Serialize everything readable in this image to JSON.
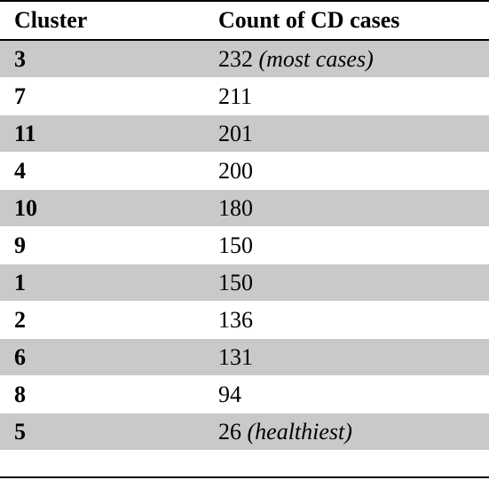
{
  "table": {
    "headers": [
      "Cluster",
      "Count of CD cases"
    ],
    "rows": [
      {
        "cluster": "3",
        "count": "232",
        "note": "(most cases)"
      },
      {
        "cluster": "7",
        "count": "211",
        "note": ""
      },
      {
        "cluster": "11",
        "count": "201",
        "note": ""
      },
      {
        "cluster": "4",
        "count": "200",
        "note": ""
      },
      {
        "cluster": "10",
        "count": "180",
        "note": ""
      },
      {
        "cluster": "9",
        "count": "150",
        "note": ""
      },
      {
        "cluster": "1",
        "count": "150",
        "note": ""
      },
      {
        "cluster": "2",
        "count": "136",
        "note": ""
      },
      {
        "cluster": "6",
        "count": "131",
        "note": ""
      },
      {
        "cluster": "8",
        "count": "94",
        "note": ""
      },
      {
        "cluster": "5",
        "count": "26",
        "note": "(healthiest)"
      }
    ]
  },
  "colors": {
    "shaded_row": "#c9c9c9",
    "rule": "#000000"
  }
}
